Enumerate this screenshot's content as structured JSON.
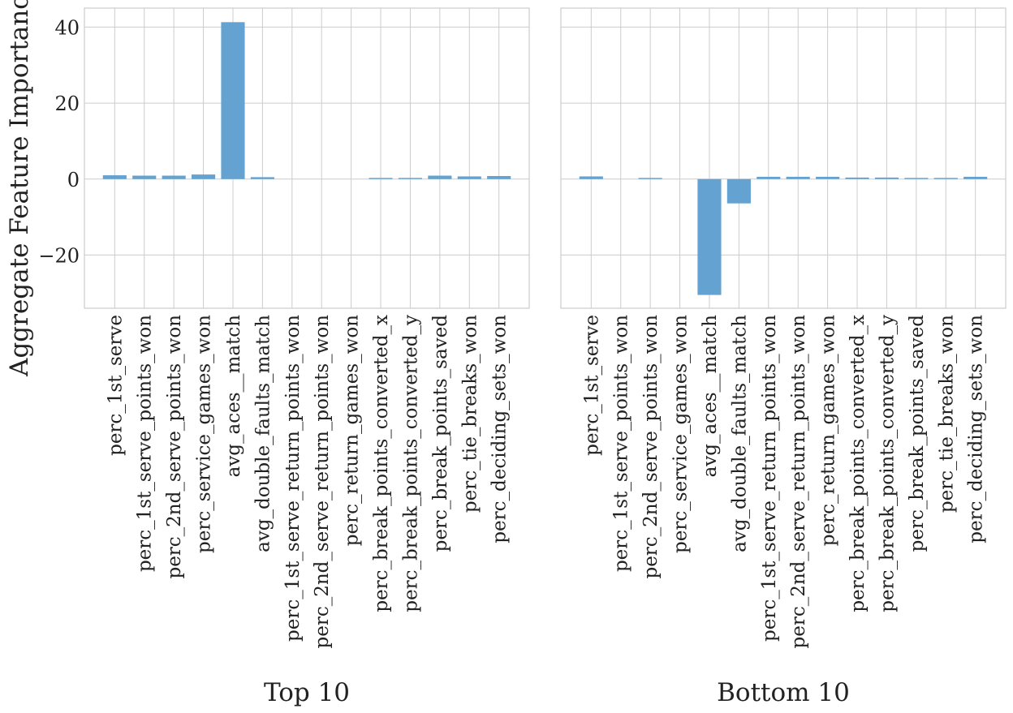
{
  "chart_data": [
    {
      "type": "bar",
      "title": "",
      "xlabel": "Top 10",
      "ylabel": "Aggregate Feature Importance",
      "ylim": [
        -34,
        45
      ],
      "yticks": [
        -20,
        0,
        20,
        40
      ],
      "ytick_labels": [
        "−20",
        "0",
        "20",
        "40"
      ],
      "grid": true,
      "bar_color": "#5f9fcf",
      "categories": [
        "perc_1st_serve",
        "perc_1st_serve_points_won",
        "perc_2nd_serve_points_won",
        "perc_service_games_won",
        "avg_aces__match",
        "avg_double_faults_match",
        "perc_1st_serve_return_points_won",
        "perc_2nd_serve_return_points_won",
        "perc_return_games_won",
        "perc_break_points_converted_x",
        "perc_break_points_converted_y",
        "perc_break_points_saved",
        "perc_tie_breaks_won",
        "perc_deciding_sets_won"
      ],
      "values": [
        1.0,
        0.9,
        0.9,
        1.2,
        41.3,
        0.5,
        0.0,
        0.0,
        0.0,
        0.3,
        0.3,
        0.9,
        0.7,
        0.8
      ]
    },
    {
      "type": "bar",
      "title": "",
      "xlabel": "Bottom 10",
      "ylabel": "",
      "ylim": [
        -34,
        45
      ],
      "yticks": [
        -20,
        0,
        20,
        40
      ],
      "ytick_labels": [
        "",
        "",
        "",
        ""
      ],
      "grid": true,
      "bar_color": "#5f9fcf",
      "categories": [
        "perc_1st_serve",
        "perc_1st_serve_points_won",
        "perc_2nd_serve_points_won",
        "perc_service_games_won",
        "avg_aces__match",
        "avg_double_faults_match",
        "perc_1st_serve_return_points_won",
        "perc_2nd_serve_return_points_won",
        "perc_return_games_won",
        "perc_break_points_converted_x",
        "perc_break_points_converted_y",
        "perc_break_points_saved",
        "perc_tie_breaks_won",
        "perc_deciding_sets_won"
      ],
      "values": [
        0.7,
        0.0,
        0.3,
        0.0,
        -30.5,
        -6.4,
        0.6,
        0.6,
        0.6,
        0.4,
        0.4,
        0.3,
        0.3,
        0.6
      ]
    }
  ]
}
